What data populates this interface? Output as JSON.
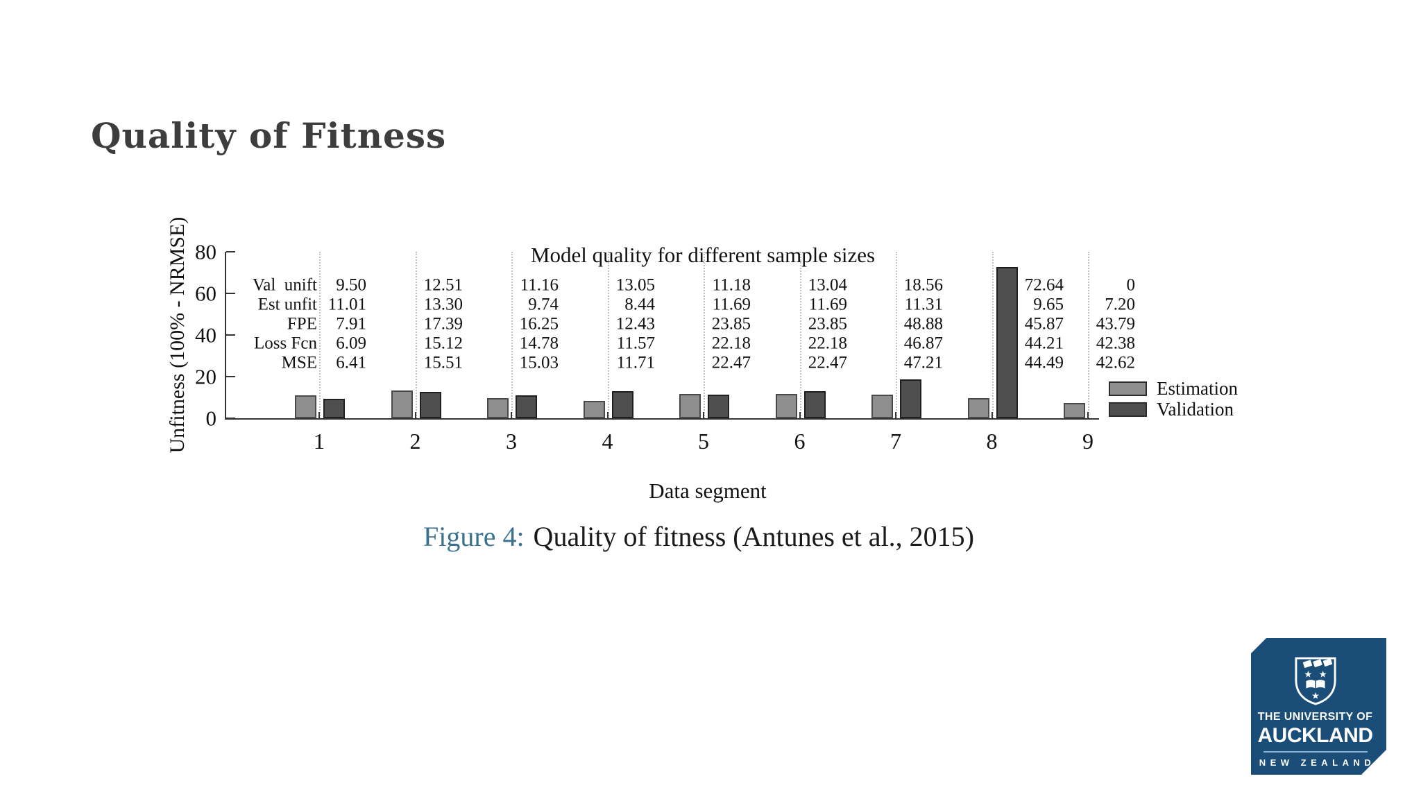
{
  "slide": {
    "title": "Quality of Fitness",
    "caption_label": "Figure 4:",
    "caption_text": "Quality of fitness (Antunes et al., 2015)"
  },
  "chart_data": {
    "type": "bar",
    "title": "Model quality for different sample sizes",
    "xlabel": "Data segment",
    "ylabel": "Unfitness (100% - NRMSE)",
    "ylim": [
      0,
      80
    ],
    "yticks": [
      0,
      20,
      40,
      60,
      80
    ],
    "grid": "vertical-dotted",
    "legend_position": "right-outside",
    "categories": [
      "1",
      "2",
      "3",
      "4",
      "5",
      "6",
      "7",
      "8",
      "9"
    ],
    "series": [
      {
        "name": "Estimation",
        "color": "#8f8f8f",
        "values": [
          11.01,
          13.3,
          9.74,
          8.44,
          11.69,
          11.69,
          11.31,
          9.65,
          7.2
        ]
      },
      {
        "name": "Validation",
        "color": "#4f4f4f",
        "values": [
          9.5,
          12.51,
          11.16,
          13.05,
          11.18,
          13.04,
          18.56,
          72.64,
          0
        ]
      }
    ],
    "table_rows": [
      {
        "label": "Val  unift",
        "values": [
          "9.50",
          "12.51",
          "11.16",
          "13.05",
          "11.18",
          "13.04",
          "18.56",
          "72.64",
          "0"
        ]
      },
      {
        "label": "Est unfit",
        "values": [
          "11.01",
          "13.30",
          "9.74",
          "8.44",
          "11.69",
          "11.69",
          "11.31",
          "9.65",
          "7.20"
        ]
      },
      {
        "label": "FPE",
        "values": [
          "7.91",
          "17.39",
          "16.25",
          "12.43",
          "23.85",
          "23.85",
          "48.88",
          "45.87",
          "43.79"
        ]
      },
      {
        "label": "Loss Fcn",
        "values": [
          "6.09",
          "15.12",
          "14.78",
          "11.57",
          "22.18",
          "22.18",
          "46.87",
          "44.21",
          "42.38"
        ]
      },
      {
        "label": "MSE",
        "values": [
          "6.41",
          "15.51",
          "15.03",
          "11.71",
          "22.47",
          "22.47",
          "47.21",
          "44.49",
          "42.62"
        ]
      }
    ]
  },
  "logo": {
    "line1": "THE UNIVERSITY OF",
    "line2": "AUCKLAND",
    "line3": "NEW ZEALAND",
    "bg_color": "#1a4e79"
  },
  "colors": {
    "heading": "#3d3d3d",
    "caption_accent": "#39718f",
    "estimation_fill": "#8f8f8f",
    "validation_fill": "#4f4f4f"
  }
}
